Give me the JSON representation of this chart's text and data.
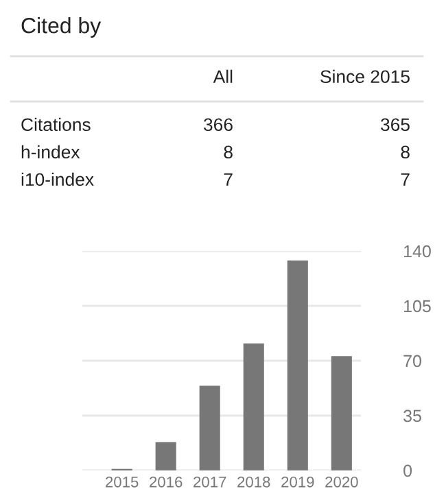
{
  "chart_data": [
    {
      "type": "other",
      "title": "Cited by",
      "annotations": [
        "All",
        "Since 2015",
        "Citations",
        "366",
        "365",
        "h-index",
        "8",
        "8",
        "i10-index",
        "7",
        "7"
      ]
    },
    {
      "type": "bar",
      "categories": [
        "2015",
        "2016",
        "2017",
        "2018",
        "2019",
        "2020"
      ],
      "values": [
        1,
        18,
        54,
        81,
        134,
        73
      ],
      "color": "#777777",
      "ylim": [
        0,
        140
      ],
      "yticks": [
        0,
        35,
        70,
        105,
        140
      ],
      "grid": "y"
    }
  ]
}
